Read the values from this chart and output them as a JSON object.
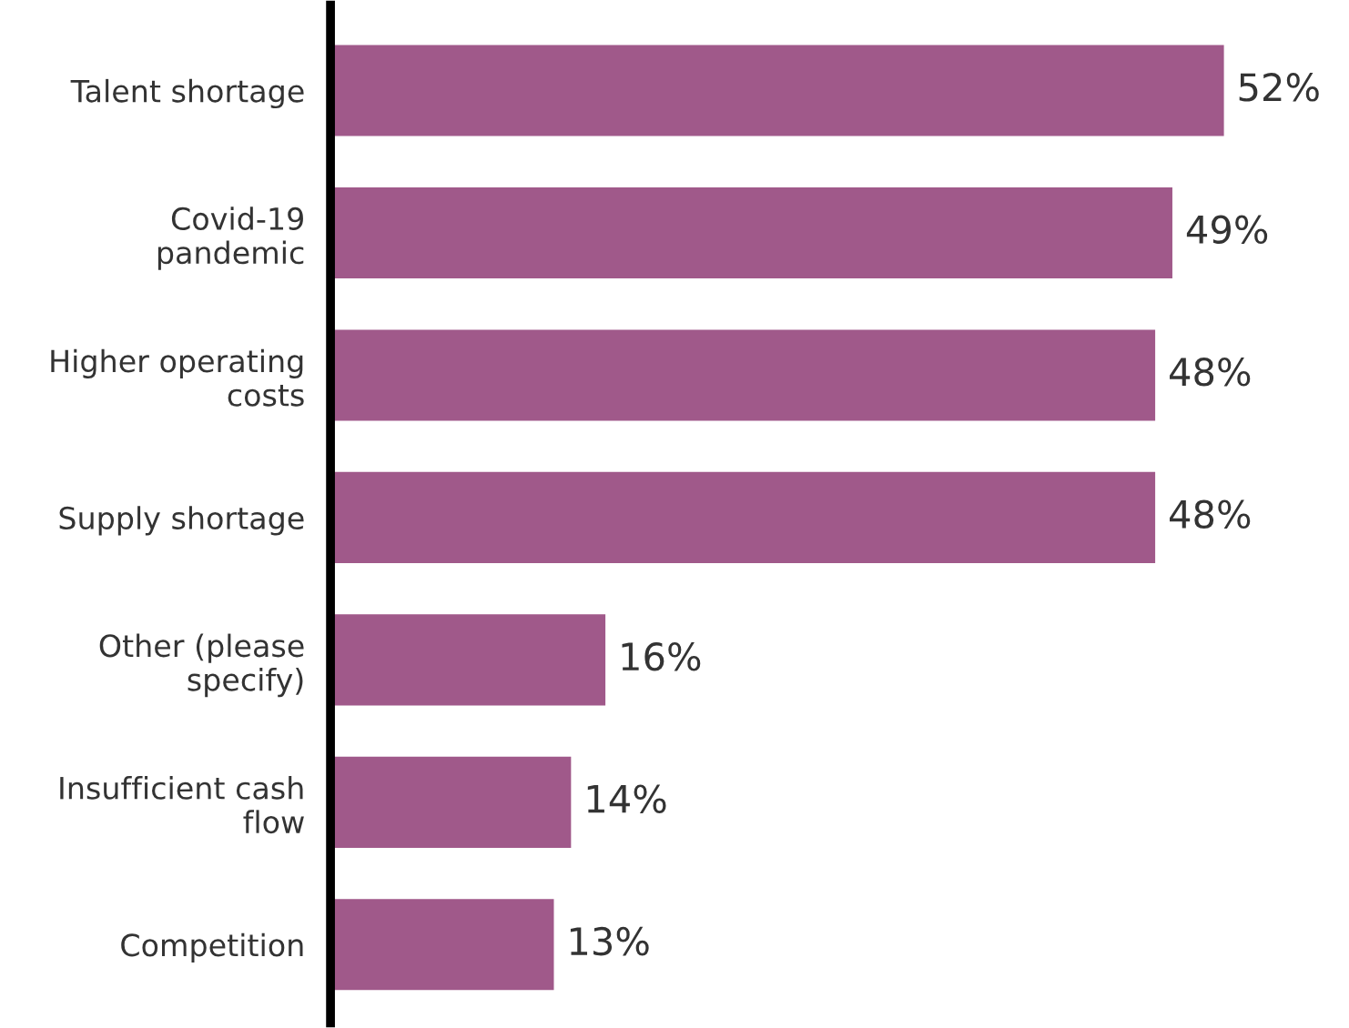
{
  "chart_data": {
    "type": "bar",
    "orientation": "horizontal",
    "categories": [
      "Talent shortage",
      "Covid-19\npandemic",
      "Higher operating\ncosts",
      "Supply shortage",
      "Other (please\nspecify)",
      "Insufficient cash\nflow",
      "Competition"
    ],
    "values": [
      52,
      49,
      48,
      48,
      16,
      14,
      13
    ],
    "value_labels": [
      "52%",
      "49%",
      "48%",
      "48%",
      "16%",
      "14%",
      "13%"
    ],
    "color": "#a0598a",
    "grid": false,
    "legend": false
  }
}
